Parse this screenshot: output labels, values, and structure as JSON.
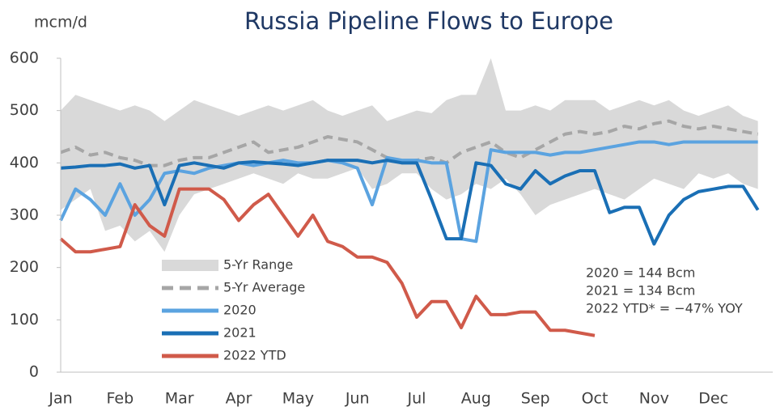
{
  "chart_data": {
    "type": "line",
    "title": "Russia Pipeline Flows to Europe",
    "y_label": "mcm/d",
    "categories": [
      "Jan",
      null,
      null,
      null,
      "Feb",
      null,
      null,
      null,
      "Mar",
      null,
      null,
      null,
      "Apr",
      null,
      null,
      null,
      "May",
      null,
      null,
      null,
      "Jun",
      null,
      null,
      null,
      "Jul",
      null,
      null,
      null,
      "Aug",
      null,
      null,
      null,
      "Sep",
      null,
      null,
      null,
      "Oct",
      null,
      null,
      null,
      "Nov",
      null,
      null,
      null,
      "Dec",
      null,
      null,
      null
    ],
    "ylim": [
      0,
      600
    ],
    "yticks": [
      0,
      100,
      200,
      300,
      400,
      500,
      600
    ],
    "range": {
      "name": "5-Yr Range",
      "color": "#d9d9d9",
      "high": [
        500,
        530,
        520,
        510,
        500,
        510,
        500,
        480,
        500,
        520,
        510,
        500,
        490,
        500,
        510,
        500,
        510,
        520,
        500,
        490,
        500,
        510,
        480,
        490,
        500,
        495,
        520,
        530,
        530,
        600,
        500,
        500,
        510,
        500,
        520,
        520,
        520,
        500,
        510,
        520,
        510,
        520,
        500,
        490,
        500,
        510,
        490,
        480
      ],
      "low": [
        310,
        330,
        350,
        270,
        280,
        250,
        270,
        230,
        300,
        340,
        350,
        360,
        370,
        380,
        370,
        360,
        380,
        370,
        370,
        380,
        390,
        350,
        360,
        380,
        380,
        350,
        330,
        340,
        360,
        350,
        370,
        340,
        300,
        320,
        330,
        340,
        350,
        340,
        330,
        350,
        370,
        360,
        350,
        380,
        370,
        380,
        360,
        350
      ]
    },
    "series": [
      {
        "name": "5-Yr Average",
        "color": "#a6a6a6",
        "dashed": true,
        "values": [
          420,
          430,
          415,
          420,
          410,
          405,
          395,
          395,
          405,
          410,
          410,
          420,
          430,
          440,
          420,
          425,
          430,
          440,
          450,
          445,
          440,
          425,
          410,
          400,
          405,
          410,
          400,
          420,
          430,
          440,
          420,
          410,
          425,
          440,
          455,
          460,
          455,
          460,
          470,
          465,
          475,
          480,
          470,
          465,
          470,
          465,
          460,
          455
        ]
      },
      {
        "name": "2020",
        "color": "#5ba3e0",
        "values": [
          290,
          350,
          330,
          300,
          360,
          300,
          330,
          380,
          385,
          380,
          390,
          395,
          400,
          395,
          400,
          405,
          400,
          400,
          405,
          400,
          390,
          320,
          410,
          405,
          405,
          400,
          400,
          255,
          250,
          425,
          420,
          420,
          420,
          415,
          420,
          420,
          425,
          430,
          435,
          440,
          440,
          435,
          440,
          440,
          440,
          440,
          440,
          440
        ]
      },
      {
        "name": "2021",
        "color": "#1a6fb5",
        "values": [
          390,
          392,
          395,
          395,
          398,
          390,
          395,
          320,
          395,
          400,
          395,
          390,
          400,
          402,
          400,
          398,
          395,
          400,
          405,
          405,
          405,
          400,
          405,
          400,
          400,
          330,
          255,
          255,
          400,
          395,
          360,
          350,
          385,
          360,
          375,
          385,
          385,
          305,
          315,
          315,
          245,
          300,
          330,
          345,
          350,
          355,
          355,
          310
        ]
      },
      {
        "name": "2022 YTD",
        "color": "#d05a4a",
        "values": [
          255,
          230,
          230,
          235,
          240,
          320,
          280,
          260,
          350,
          350,
          350,
          330,
          290,
          320,
          340,
          300,
          260,
          300,
          250,
          240,
          220,
          220,
          210,
          170,
          105,
          135,
          135,
          85,
          145,
          110,
          110,
          115,
          115,
          80,
          80,
          75,
          70,
          null,
          null,
          null,
          null,
          null,
          null,
          null,
          null,
          null,
          null,
          null
        ]
      }
    ],
    "annotations": [
      "2020 = 144 Bcm",
      "2021 = 134 Bcm",
      "2022 YTD* = −47% YOY"
    ]
  }
}
